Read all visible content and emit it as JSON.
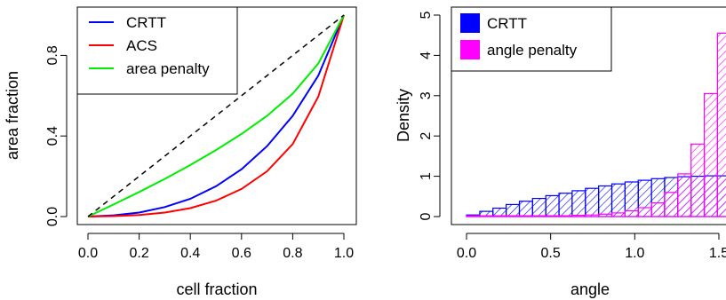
{
  "chart_data": [
    {
      "type": "line",
      "xlabel": "cell fraction",
      "ylabel": "area fraction",
      "xlim": [
        0,
        1
      ],
      "ylim": [
        0,
        1
      ],
      "x_ticks": [
        "0.0",
        "0.2",
        "0.4",
        "0.6",
        "0.8",
        "1.0"
      ],
      "y_ticks": [
        "0.0",
        "0.4",
        "0.8"
      ],
      "legend_position": "top-left",
      "x": [
        0,
        0.1,
        0.2,
        0.3,
        0.4,
        0.5,
        0.6,
        0.7,
        0.8,
        0.9,
        1.0
      ],
      "series": [
        {
          "name": "CRTT",
          "color": "#0000ff",
          "values": [
            0,
            0.006,
            0.02,
            0.047,
            0.088,
            0.15,
            0.235,
            0.35,
            0.5,
            0.7,
            1.0
          ]
        },
        {
          "name": "ACS",
          "color": "#ff0000",
          "values": [
            0,
            0.002,
            0.008,
            0.02,
            0.042,
            0.079,
            0.137,
            0.225,
            0.36,
            0.595,
            1.0
          ]
        },
        {
          "name": "area penalty",
          "color": "#00ee00",
          "values": [
            0,
            0.06,
            0.122,
            0.187,
            0.256,
            0.33,
            0.41,
            0.5,
            0.61,
            0.76,
            1.0
          ]
        },
        {
          "name": "",
          "color": "#000000",
          "dashed": true,
          "values": [
            0,
            0.1,
            0.2,
            0.3,
            0.4,
            0.5,
            0.6,
            0.7,
            0.8,
            0.9,
            1.0
          ]
        }
      ]
    },
    {
      "type": "bar",
      "subtype": "histogram",
      "xlabel": "angle",
      "ylabel": "Density",
      "xlim": [
        0,
        1.6
      ],
      "ylim": [
        0,
        5
      ],
      "x_ticks": [
        "0.0",
        "0.5",
        "1.0",
        "1.5"
      ],
      "y_ticks": [
        "0",
        "1",
        "2",
        "3",
        "4",
        "5"
      ],
      "legend_position": "top-left",
      "bin_width": 0.0785,
      "series": [
        {
          "name": "CRTT",
          "color": "#0000ff",
          "values": [
            0.04,
            0.13,
            0.21,
            0.3,
            0.38,
            0.45,
            0.52,
            0.58,
            0.64,
            0.7,
            0.76,
            0.81,
            0.86,
            0.9,
            0.94,
            0.97,
            0.99,
            1.0,
            1.01,
            1.01
          ]
        },
        {
          "name": "angle penalty",
          "color": "#ff00ff",
          "values": [
            0.02,
            0.02,
            0.02,
            0.02,
            0.02,
            0.02,
            0.02,
            0.02,
            0.03,
            0.04,
            0.06,
            0.09,
            0.14,
            0.22,
            0.34,
            0.6,
            1.06,
            1.8,
            3.05,
            4.55
          ]
        }
      ]
    }
  ]
}
